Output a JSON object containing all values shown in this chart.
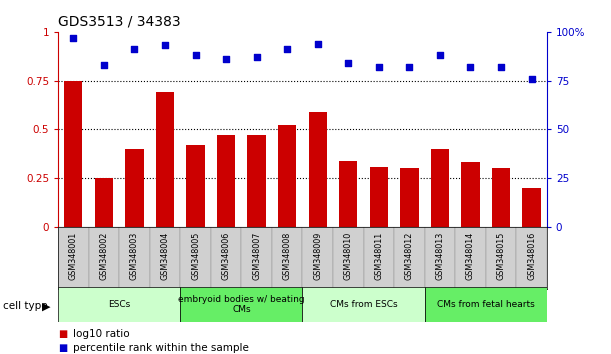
{
  "title": "GDS3513 / 34383",
  "samples": [
    "GSM348001",
    "GSM348002",
    "GSM348003",
    "GSM348004",
    "GSM348005",
    "GSM348006",
    "GSM348007",
    "GSM348008",
    "GSM348009",
    "GSM348010",
    "GSM348011",
    "GSM348012",
    "GSM348013",
    "GSM348014",
    "GSM348015",
    "GSM348016"
  ],
  "log10_ratio": [
    0.75,
    0.25,
    0.4,
    0.69,
    0.42,
    0.47,
    0.47,
    0.52,
    0.59,
    0.335,
    0.305,
    0.3,
    0.4,
    0.33,
    0.3,
    0.2
  ],
  "percentile_rank": [
    97,
    83,
    91,
    93,
    88,
    86,
    87,
    91,
    94,
    84,
    82,
    82,
    88,
    82,
    82,
    76
  ],
  "bar_color": "#cc0000",
  "dot_color": "#0000cc",
  "cell_types": [
    {
      "label": "ESCs",
      "start": 0,
      "end": 4,
      "color": "#ccffcc"
    },
    {
      "label": "embryoid bodies w/ beating\nCMs",
      "start": 4,
      "end": 8,
      "color": "#66ee66"
    },
    {
      "label": "CMs from ESCs",
      "start": 8,
      "end": 12,
      "color": "#ccffcc"
    },
    {
      "label": "CMs from fetal hearts",
      "start": 12,
      "end": 16,
      "color": "#66ee66"
    }
  ],
  "ylim_left": [
    0,
    1.0
  ],
  "ylim_right": [
    0,
    100
  ],
  "yticks_left": [
    0,
    0.25,
    0.5,
    0.75
  ],
  "ytick_top_left": 1.0,
  "yticks_right": [
    0,
    25,
    50,
    75,
    100
  ],
  "yticklabels_right": [
    "0",
    "25",
    "50",
    "75",
    "100%"
  ],
  "background_color": "#ffffff"
}
